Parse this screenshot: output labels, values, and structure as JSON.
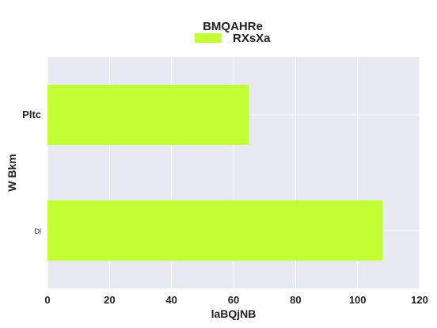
{
  "chart_data": {
    "type": "bar",
    "orientation": "horizontal",
    "categories": [
      "Pltc",
      "Dl"
    ],
    "series": [
      {
        "name": "RXsXa",
        "values": [
          65,
          108
        ],
        "color": "#c3ff35"
      }
    ],
    "legend_title": "BMQAHRe",
    "legend_position": "top-center",
    "xlabel": "laBQjNB",
    "ylabel": "W Bkm",
    "xlim": [
      0,
      120
    ],
    "xticks": [
      0,
      20,
      40,
      60,
      80,
      100,
      120
    ],
    "grid": true,
    "background_color": "#e9e9f2",
    "grid_color": "#ffffff"
  }
}
